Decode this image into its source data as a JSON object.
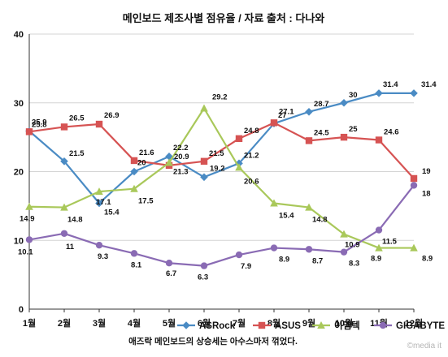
{
  "chart_data": {
    "type": "line",
    "title": "메인보드 제조사별 점유율 / 자료 출처 : 다나와",
    "categories": [
      "1월",
      "2월",
      "3월",
      "4월",
      "5월",
      "6월",
      "7월",
      "8월",
      "9월",
      "10월",
      "11월",
      "12월"
    ],
    "yticks": [
      "0",
      "10",
      "20",
      "30",
      "40"
    ],
    "ylim": [
      0,
      40
    ],
    "grid": "horizontal",
    "legend_position": "bottom",
    "series": [
      {
        "name": "ASRock",
        "color": "#4a8bc4",
        "marker": "diamond",
        "values": [
          25.9,
          21.5,
          15.4,
          20,
          22.2,
          19.2,
          21.2,
          27,
          28.7,
          30,
          31.4,
          31.4
        ],
        "labels": [
          "25.9",
          "21.5",
          "15.4",
          "20",
          "22.2",
          "19.2",
          "21.2",
          "27",
          "28.7",
          "30",
          "31.4",
          "31.4"
        ]
      },
      {
        "name": "ASUS",
        "color": "#d65353",
        "marker": "square",
        "values": [
          25.8,
          26.5,
          26.9,
          21.6,
          20.9,
          21.5,
          24.8,
          27.1,
          24.5,
          25,
          24.6,
          19
        ],
        "labels": [
          "25.8",
          "26.5",
          "26.9",
          "21.6",
          "20.9",
          "21.5",
          "24.8",
          "27.1",
          "24.5",
          "25",
          "24.6",
          "19"
        ]
      },
      {
        "name": "이엠텍",
        "color": "#a9c85a",
        "marker": "triangle",
        "values": [
          14.9,
          14.8,
          17.1,
          17.5,
          21.3,
          29.2,
          20.6,
          15.4,
          14.8,
          10.9,
          8.9,
          8.9
        ],
        "labels": [
          "14.9",
          "14.8",
          "17.1",
          "17.5",
          "21.3",
          "29.2",
          "20.6",
          "15.4",
          "14.8",
          "10.9",
          "8.9",
          "8.9"
        ]
      },
      {
        "name": "GIGABYTE",
        "color": "#8a6bb4",
        "marker": "circle",
        "values": [
          10.1,
          11,
          9.3,
          8.1,
          6.7,
          6.3,
          7.9,
          8.9,
          8.7,
          8.3,
          11.5,
          18
        ],
        "labels": [
          "10.1",
          "11",
          "9.3",
          "8.1",
          "6.7",
          "6.3",
          "7.9",
          "8.9",
          "8.7",
          "8.3",
          "11.5",
          "18"
        ]
      }
    ]
  },
  "footnote": "애즈락 메인보드의 상승세는 아수스마저 꺾었다.",
  "watermark": "©media it"
}
